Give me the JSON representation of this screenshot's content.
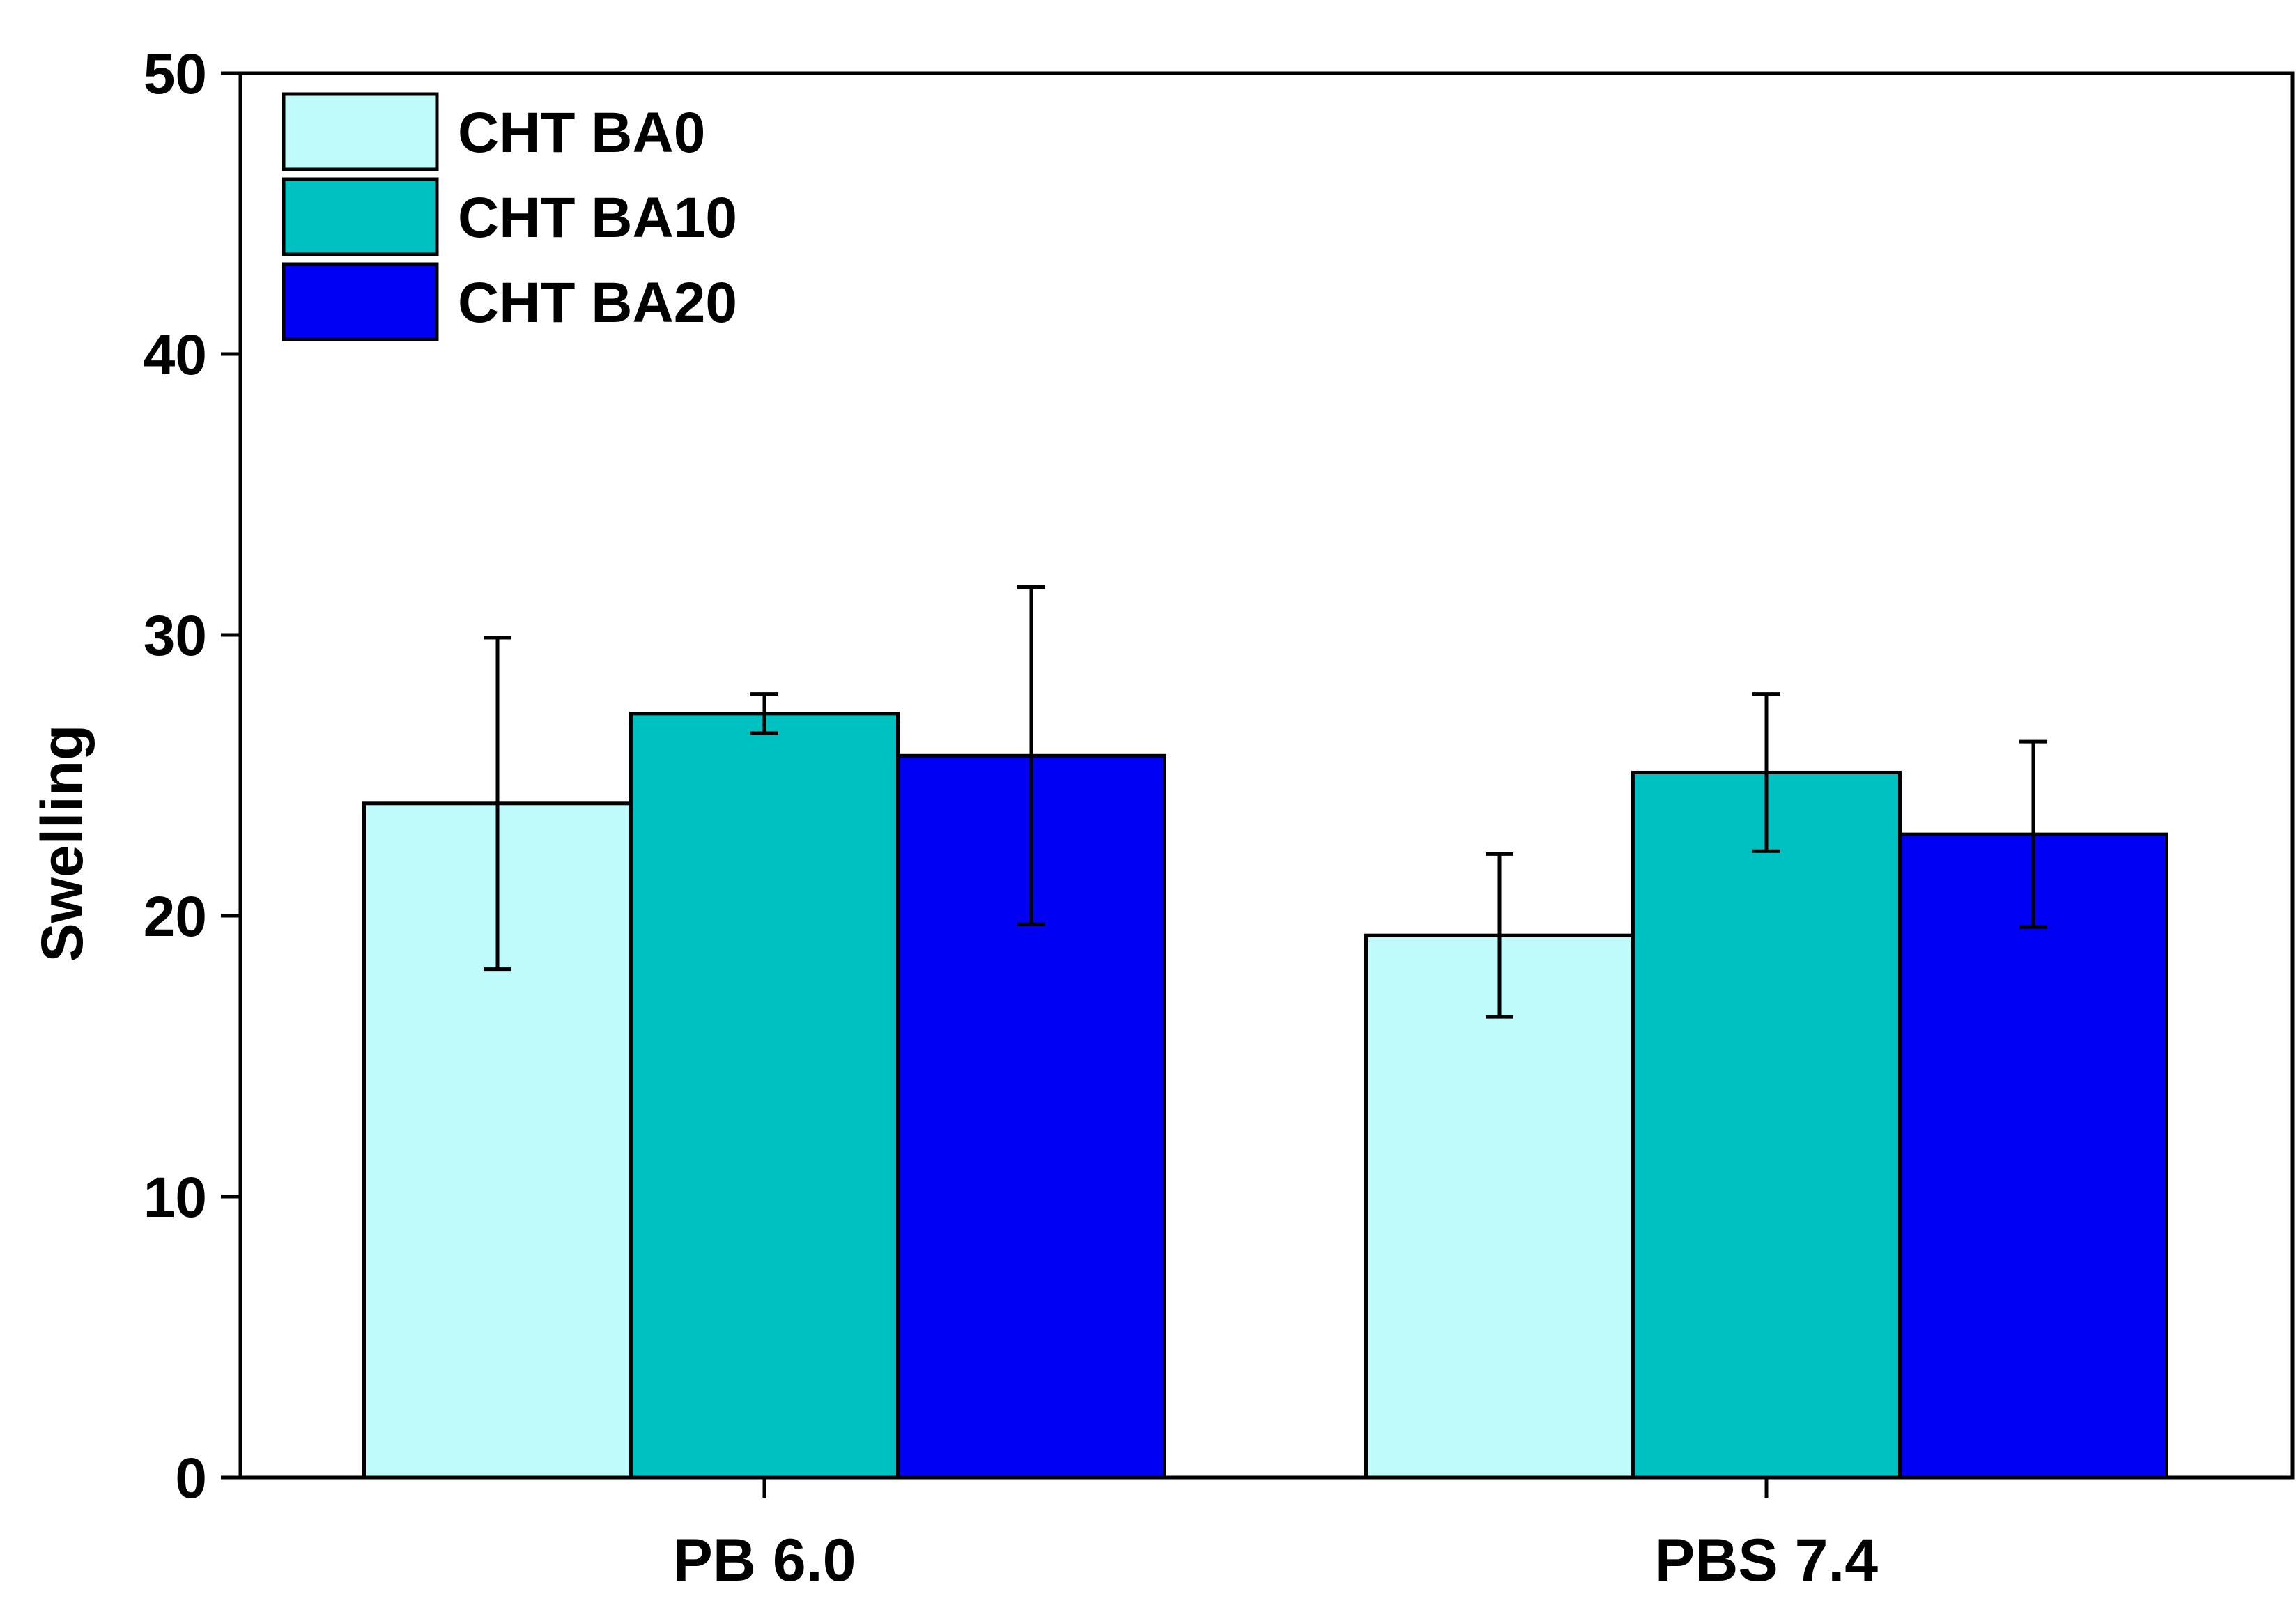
{
  "chart_data": {
    "type": "bar",
    "title": "",
    "xlabel": "",
    "ylabel": "Swelling",
    "categories": [
      "PB 6.0",
      "PBS 7.4"
    ],
    "ylim": [
      0,
      50
    ],
    "yticks": [
      0,
      10,
      20,
      30,
      40,
      50
    ],
    "grid": false,
    "legend_position": "top-left",
    "series": [
      {
        "name": "CHT BA0",
        "color": "#BFFBFB",
        "values": [
          24.0,
          19.3
        ],
        "errors": [
          5.9,
          2.9
        ]
      },
      {
        "name": "CHT BA10",
        "color": "#00C1C1",
        "values": [
          27.2,
          25.1
        ],
        "errors": [
          0.7,
          2.8
        ]
      },
      {
        "name": "CHT BA20",
        "color": "#0000F5",
        "values": [
          25.7,
          22.9
        ],
        "errors": [
          6.0,
          3.3
        ]
      }
    ]
  }
}
